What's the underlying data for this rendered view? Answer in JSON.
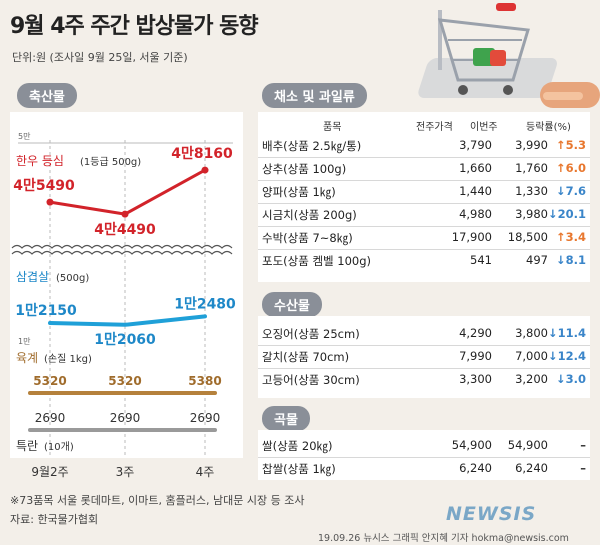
{
  "title": "9월 4주 주간 밥상물가 동향",
  "subtitle": "단위:원 (조사일 9월 25일, 서울 기준)",
  "colors": {
    "up": "#e8772e",
    "down": "#3a85c9",
    "hanwoo": "#d2232a",
    "pork": "#1fa0d8",
    "egg": "#b5813c",
    "premium_egg": "#9a9a9a",
    "header": "#8a8f98"
  },
  "sections": {
    "meat": "축산물",
    "veg": "채소 및 과일류",
    "seafood": "수산물",
    "grain": "곡물"
  },
  "columns": {
    "item": "품목",
    "prev_week": "전주가격",
    "this_week": "이번주",
    "change": "등락률(%)"
  },
  "chart_data": {
    "type": "line",
    "x": [
      "9월2주",
      "3주",
      "4주"
    ],
    "series": [
      {
        "name": "한우 등심",
        "note": "(1등급 500g)",
        "values": [
          45490,
          44490,
          48160
        ],
        "labels": [
          "4만5490",
          "4만4490",
          "4만8160"
        ],
        "axis_label": "5만"
      },
      {
        "name": "삼겹살",
        "note": "(500g)",
        "values": [
          12150,
          12060,
          12480
        ],
        "labels": [
          "1만2150",
          "1만2060",
          "1만2480"
        ],
        "axis_label": "1만"
      },
      {
        "name": "육계",
        "note": "(손질 1kg)",
        "values": [
          5320,
          5320,
          5380
        ],
        "labels": [
          "5320",
          "5320",
          "5380"
        ]
      },
      {
        "name": "특란",
        "note": "(10개)",
        "values": [
          2690,
          2690,
          2690
        ],
        "labels": [
          "2690",
          "2690",
          "2690"
        ]
      }
    ]
  },
  "veg_rows": [
    {
      "name": "배추(상품 2.5㎏/통)",
      "prev": "3,790",
      "cur": "3,990",
      "dir": "up",
      "chg": "5.3"
    },
    {
      "name": "상추(상품 100g)",
      "prev": "1,660",
      "cur": "1,760",
      "dir": "up",
      "chg": "6.0"
    },
    {
      "name": "양파(상품 1㎏)",
      "prev": "1,440",
      "cur": "1,330",
      "dir": "down",
      "chg": "7.6"
    },
    {
      "name": "시금치(상품 200g)",
      "prev": "4,980",
      "cur": "3,980",
      "dir": "down",
      "chg": "20.1"
    },
    {
      "name": "수박(상품 7~8㎏)",
      "prev": "17,900",
      "cur": "18,500",
      "dir": "up",
      "chg": "3.4"
    },
    {
      "name": "포도(상품 켐벨 100g)",
      "prev": "541",
      "cur": "497",
      "dir": "down",
      "chg": "8.1"
    }
  ],
  "sea_rows": [
    {
      "name": "오징어(상품 25cm)",
      "prev": "4,290",
      "cur": "3,800",
      "dir": "down",
      "chg": "11.4"
    },
    {
      "name": "갈치(상품 70cm)",
      "prev": "7,990",
      "cur": "7,000",
      "dir": "down",
      "chg": "12.4"
    },
    {
      "name": "고등어(상품 30cm)",
      "prev": "3,300",
      "cur": "3,200",
      "dir": "down",
      "chg": "3.0"
    }
  ],
  "grain_rows": [
    {
      "name": "쌀(상품 20㎏)",
      "prev": "54,900",
      "cur": "54,900",
      "dir": "none",
      "chg": "–"
    },
    {
      "name": "찹쌀(상품 1㎏)",
      "prev": "6,240",
      "cur": "6,240",
      "dir": "none",
      "chg": "–"
    }
  ],
  "footnote": "※73품목 서울 롯데마트, 이마트, 홈플러스, 남대문 시장 등 조사",
  "source": "자료: 한국물가협회",
  "credit": "19.09.26 뉴시스 그래픽 안지혜 기자 hokma@newsis.com",
  "logo": "NEWSIS"
}
